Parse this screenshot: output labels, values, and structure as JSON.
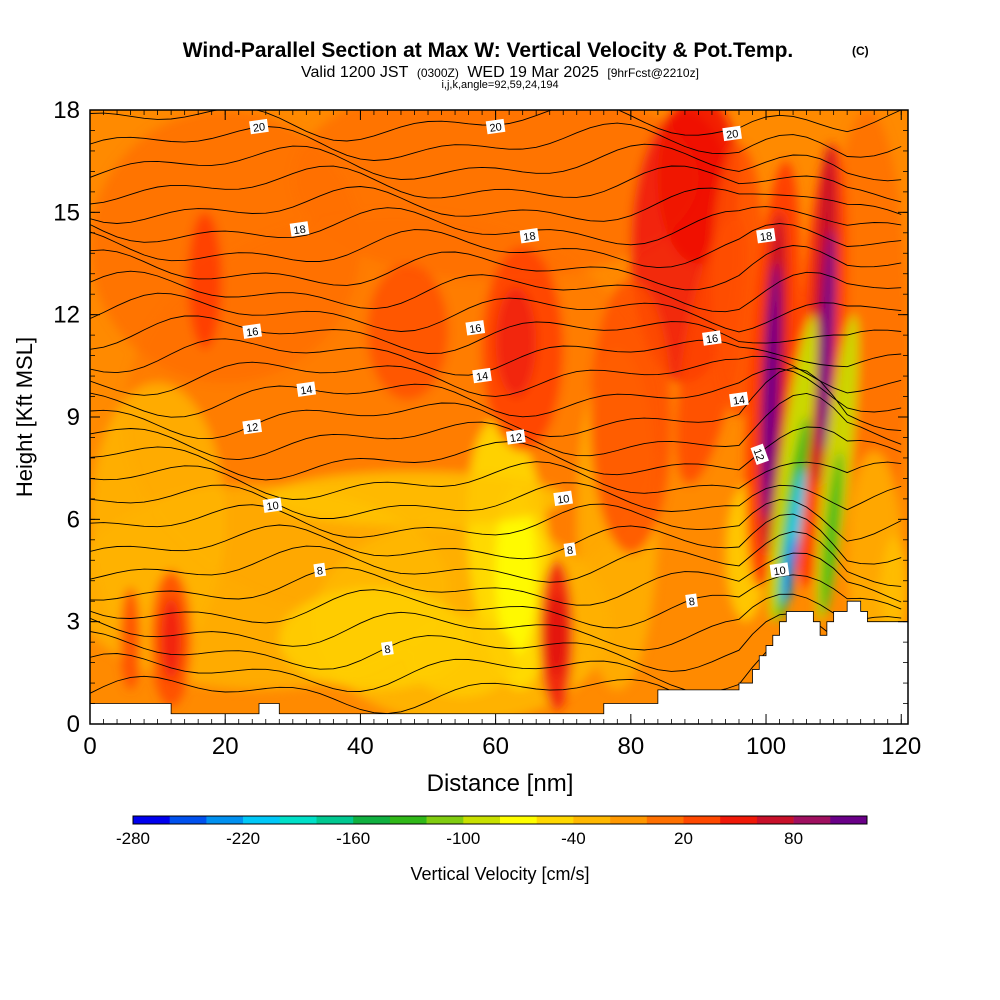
{
  "chart_data": {
    "type": "heatmap",
    "title": "Wind-Parallel Section at Max W: Vertical Velocity & Pot.Temp.",
    "title_mark": "(C)",
    "subtitle_main": "Valid 1200 JST",
    "subtitle_zulu": "(0300Z)",
    "subtitle_date": "WED 19 Mar 2025",
    "subtitle_fcst": "[9hrFcst@2210z]",
    "subtitle_indices": "i,j,k,angle=92,59,24,194",
    "xlabel": "Distance [nm]",
    "ylabel": "Height [Kft MSL]",
    "xlim": [
      0,
      121
    ],
    "ylim": [
      0,
      18
    ],
    "x_ticks": [
      0,
      20,
      40,
      60,
      80,
      100,
      120
    ],
    "y_ticks": [
      0,
      3,
      6,
      9,
      12,
      15,
      18
    ],
    "colorbar": {
      "label": "Vertical Velocity [cm/s]",
      "tick_labels": [
        "-280",
        "-220",
        "-160",
        "-100",
        "-40",
        "20",
        "80"
      ],
      "tick_values": [
        -280,
        -220,
        -160,
        -100,
        -40,
        20,
        80
      ],
      "range": [
        -280,
        120
      ],
      "colors": [
        "#0000ee",
        "#0050ee",
        "#0090f0",
        "#00c8f8",
        "#00e0c8",
        "#00c890",
        "#10b040",
        "#30b818",
        "#80cc10",
        "#c8e000",
        "#ffff00",
        "#ffd800",
        "#ffb800",
        "#ff9800",
        "#ff7000",
        "#ff4800",
        "#f01808",
        "#c8102a",
        "#a01060",
        "#6a0088"
      ]
    },
    "contour_field": "Potential temperature [deg C]",
    "contour_label_values": [
      "20",
      "20",
      "20",
      "18",
      "18",
      "18",
      "16",
      "16",
      "16",
      "14",
      "14",
      "14",
      "12",
      "12",
      "12",
      "10",
      "10",
      "10",
      "8",
      "8",
      "8",
      "8"
    ],
    "terrain_profile": {
      "x": [
        0,
        6,
        12,
        22,
        25,
        28,
        60,
        70,
        76,
        84,
        94,
        96,
        98,
        99,
        100,
        101,
        102,
        103,
        105,
        107,
        108,
        109,
        110,
        112,
        114,
        115,
        116,
        120,
        121
      ],
      "height": [
        0.6,
        0.6,
        0.3,
        0.3,
        0.6,
        0.3,
        0.3,
        0.3,
        0.6,
        1.0,
        1.0,
        1.2,
        1.6,
        2.0,
        2.3,
        2.6,
        3.0,
        3.3,
        3.3,
        3.0,
        2.6,
        3.0,
        3.3,
        3.6,
        3.3,
        3.0,
        3.0,
        3.0,
        2.6
      ]
    }
  }
}
